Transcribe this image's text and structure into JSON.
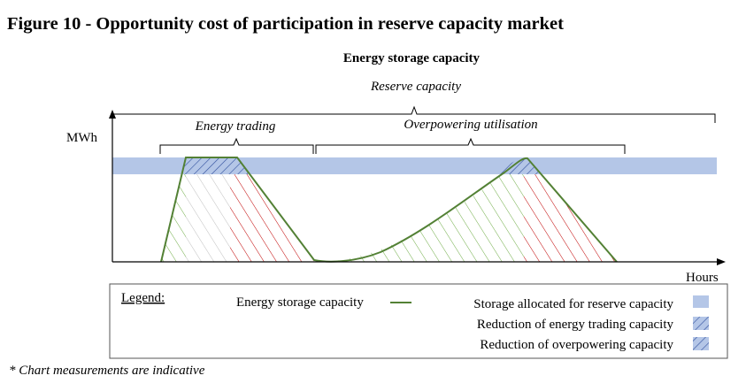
{
  "figure": {
    "title": "Figure 10 - Opportunity cost of participation in reserve capacity market",
    "footnote": "* Chart measurements are indicative"
  },
  "diagram": {
    "top_label": "Energy storage capacity",
    "reserve_label": "Reserve capacity",
    "y_axis_label": "MWh",
    "x_axis_label": "Hours",
    "brace_energy_trading": "Energy trading",
    "brace_overpowering": "Overpowering utilisation"
  },
  "legend": {
    "heading": "Legend:",
    "line_item": "Energy storage capacity",
    "reserve_item": "Storage allocated for reserve capacity",
    "trading_item": "Reduction of energy trading capacity",
    "overpower_item": "Reduction of overpowering capacity"
  },
  "colors": {
    "curve": "#538135",
    "reserve_band": "#b4c6e7",
    "hatch_blue": "#2f4e9c",
    "hatch_green": "#70ad47",
    "hatch_red": "#c00000",
    "hatch_grey": "#bfbfbf"
  }
}
